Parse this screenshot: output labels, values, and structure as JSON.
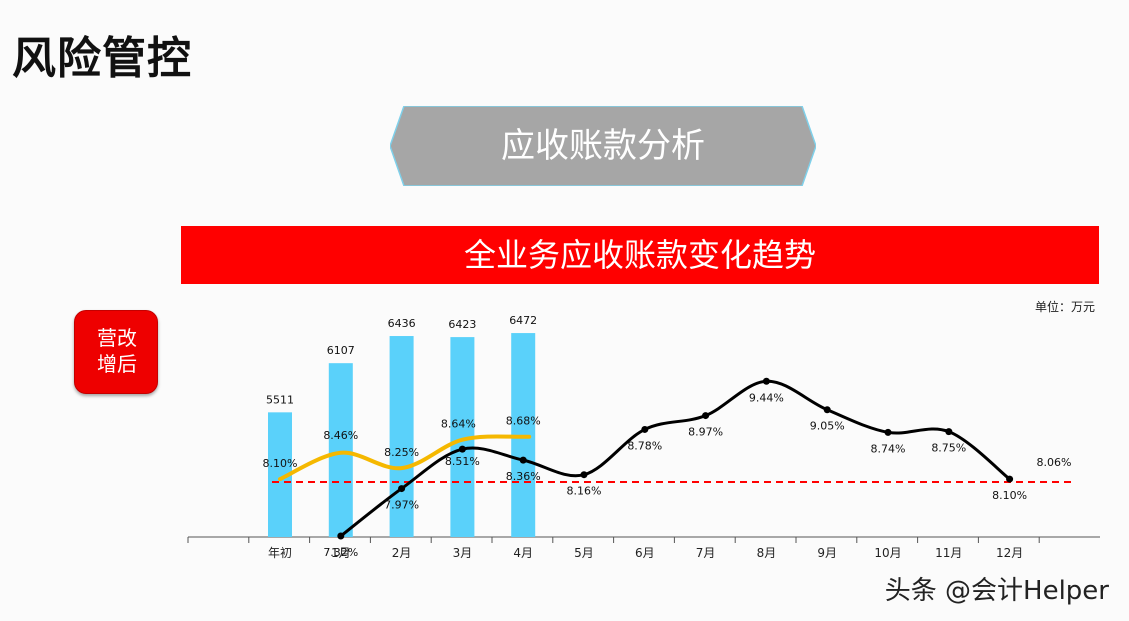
{
  "page": {
    "title": "风险管控",
    "section_label": "应收账款分析",
    "banner_title": "全业务应收账款变化趋势",
    "unit_label": "单位：万元",
    "side_badge": "营改增后",
    "watermark": "头条 @会计Helper"
  },
  "colors": {
    "bar": "#5ad1fa",
    "line_yellow": "#f5b800",
    "line_black": "#000000",
    "reference_line": "#ff0000",
    "banner": "#ff0000",
    "section_tag": "#a6a6a6"
  },
  "chart_data": {
    "type": "bar",
    "categories": [
      "年初",
      "1月",
      "2月",
      "3月",
      "4月",
      "5月",
      "6月",
      "7月",
      "8月",
      "9月",
      "10月",
      "11月",
      "12月"
    ],
    "series": [
      {
        "kind": "bar",
        "values": [
          5511,
          6107,
          6436,
          6423,
          6472,
          null,
          null,
          null,
          null,
          null,
          null,
          null,
          null
        ],
        "value_labels": [
          "5511",
          "6107",
          "6436",
          "6423",
          "6472"
        ]
      },
      {
        "kind": "line",
        "color": "yellow",
        "values": [
          8.1,
          8.46,
          8.25,
          8.64,
          8.68,
          null,
          null,
          null,
          null,
          null,
          null,
          null,
          null
        ],
        "value_labels": [
          "8.10%",
          "8.46%",
          "8.25%",
          "8.64%",
          "8.68%"
        ]
      },
      {
        "kind": "line",
        "color": "black",
        "values": [
          null,
          7.32,
          7.97,
          8.51,
          8.36,
          8.16,
          8.78,
          8.97,
          9.44,
          9.05,
          8.74,
          8.75,
          8.1
        ],
        "value_labels": [
          "",
          "7.32%",
          "7.97%",
          "8.51%",
          "8.36%",
          "8.16%",
          "8.78%",
          "8.97%",
          "9.44%",
          "9.05%",
          "8.74%",
          "8.75%",
          "8.10%"
        ]
      }
    ],
    "reference_line": {
      "value": 8.06,
      "label": "8.06%",
      "style": "dashed"
    },
    "title": "全业务应收账款变化趋势",
    "unit": "单位：万元"
  }
}
